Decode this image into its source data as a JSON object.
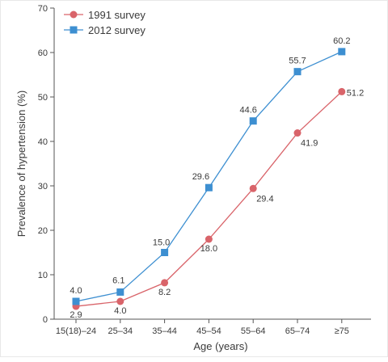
{
  "chart_data": {
    "type": "line",
    "xlabel": "Age (years)",
    "ylabel": "Prevalence of hypertension (%)",
    "categories": [
      "15(18)–24",
      "25–34",
      "35–44",
      "45–54",
      "55–64",
      "65–74",
      "≥75"
    ],
    "ylim": [
      0,
      70
    ],
    "yticks": [
      0,
      10,
      20,
      30,
      40,
      50,
      60,
      70
    ],
    "grid": false,
    "legend": "top-left",
    "series": [
      {
        "name": "1991 survey",
        "color": "#d9646a",
        "marker": "circle",
        "values": [
          2.9,
          4.0,
          8.2,
          18.0,
          29.4,
          41.9,
          51.2
        ],
        "labels": [
          "2.9",
          "4.0",
          "8.2",
          "18.0",
          "29.4",
          "41.9",
          "51.2"
        ]
      },
      {
        "name": "2012 survey",
        "color": "#3d8fd1",
        "marker": "square",
        "values": [
          4.0,
          6.1,
          15.0,
          29.6,
          44.6,
          55.7,
          60.2
        ],
        "labels": [
          "4.0",
          "6.1",
          "15.0",
          "29.6",
          "44.6",
          "55.7",
          "60.2"
        ]
      }
    ]
  }
}
